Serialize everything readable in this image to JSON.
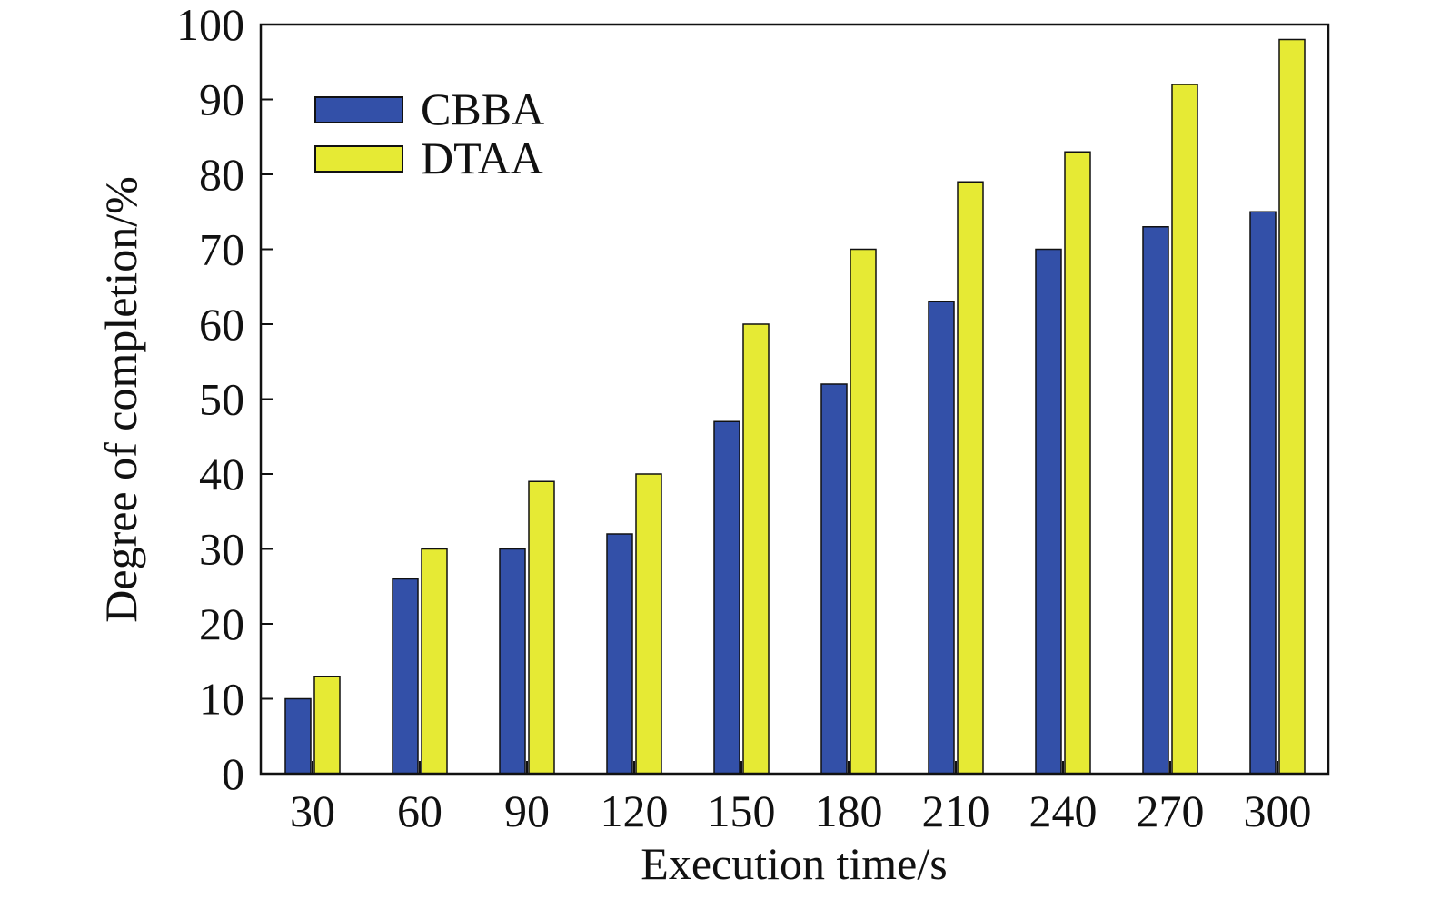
{
  "chart_data": {
    "type": "bar",
    "title": "",
    "xlabel": "Execution time/s",
    "ylabel": "Degree of completion/%",
    "categories": [
      "30",
      "60",
      "90",
      "120",
      "150",
      "180",
      "210",
      "240",
      "270",
      "300"
    ],
    "series": [
      {
        "name": "CBBA",
        "color": "#3350a8",
        "values": [
          10,
          26,
          30,
          32,
          47,
          52,
          63,
          70,
          73,
          75
        ]
      },
      {
        "name": "DTAA",
        "color": "#e6ea34",
        "values": [
          13,
          30,
          39,
          40,
          60,
          70,
          79,
          83,
          92,
          98
        ]
      }
    ],
    "ylim": [
      0,
      100
    ],
    "yticks": [
      "0",
      "10",
      "20",
      "30",
      "40",
      "50",
      "60",
      "70",
      "80",
      "90",
      "100"
    ],
    "grid": false,
    "legend_position": "top-left"
  }
}
